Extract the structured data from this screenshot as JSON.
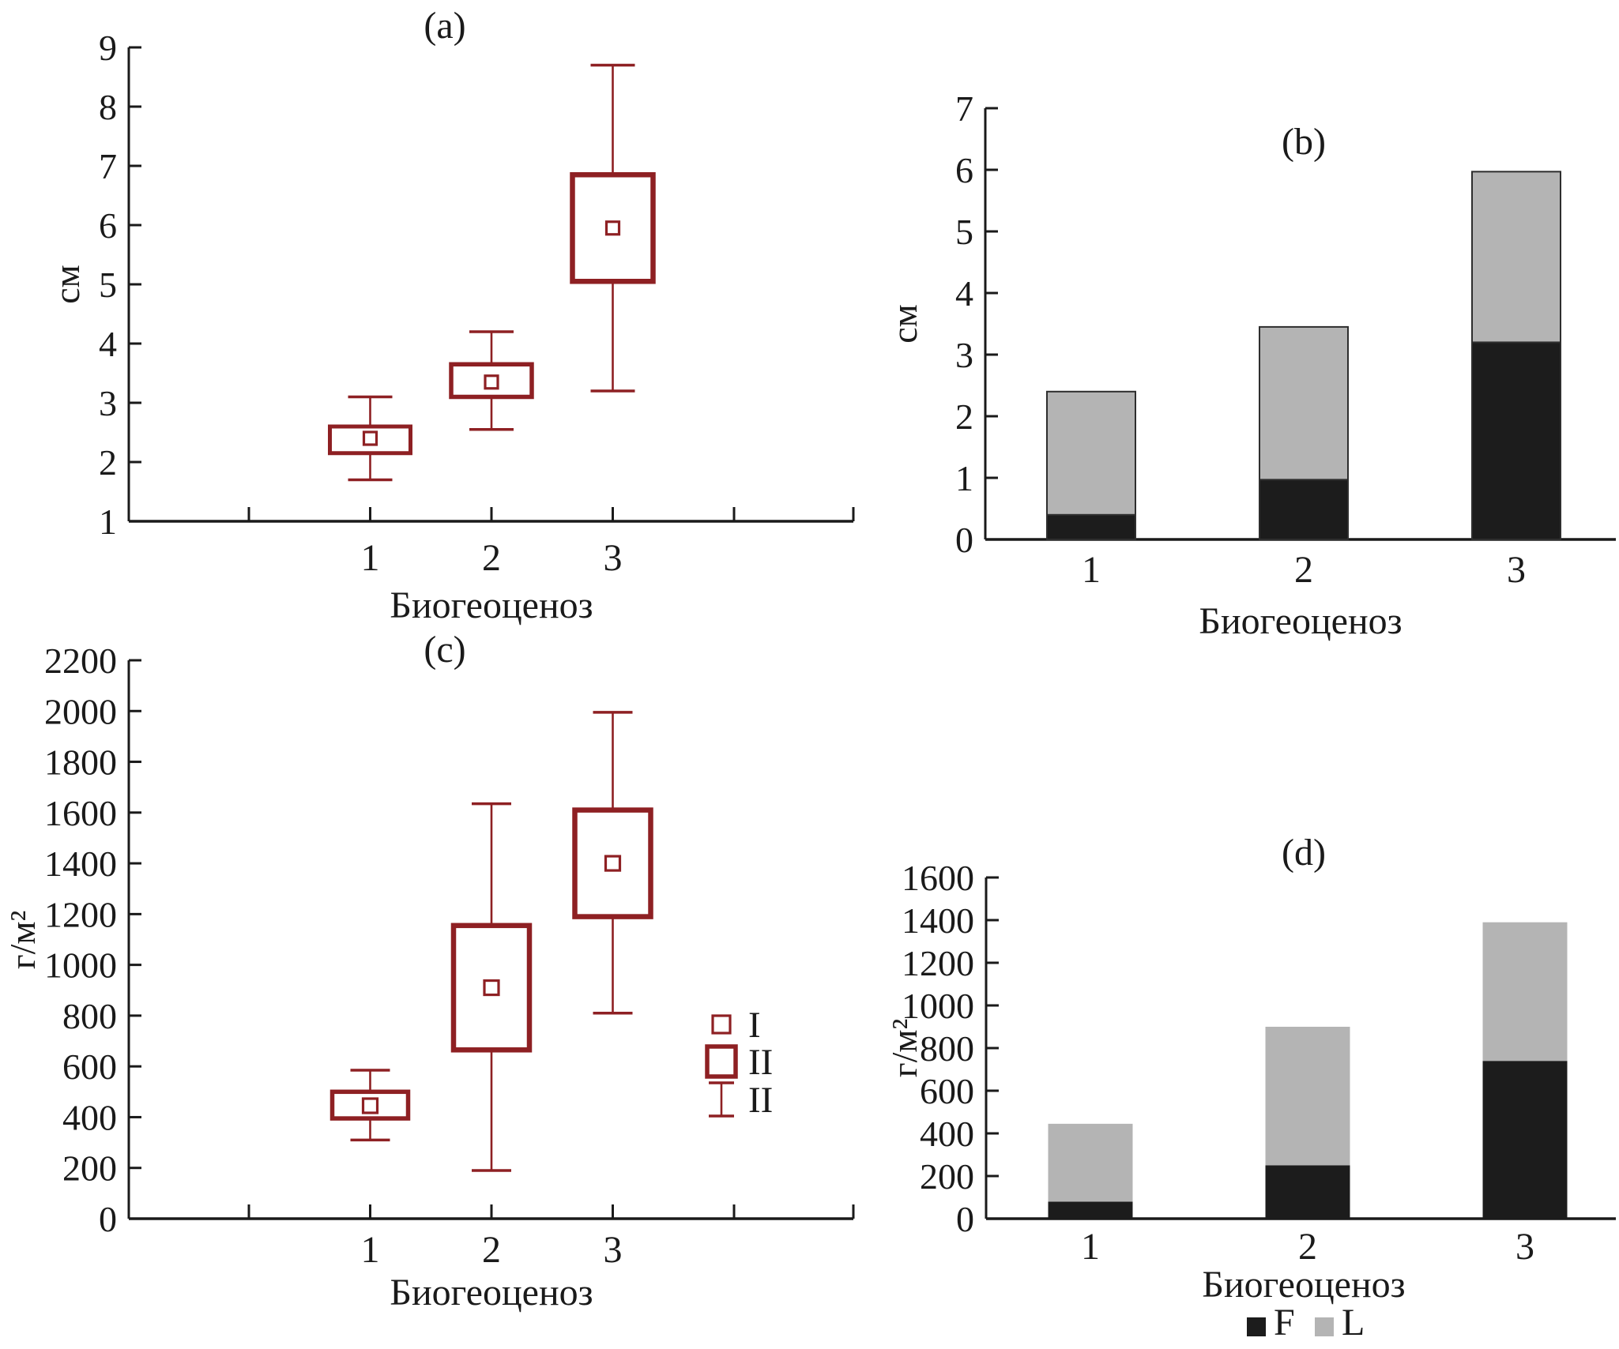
{
  "figure": {
    "background": "#ffffff",
    "xlabel_text": "Биогеоценоз"
  },
  "colors": {
    "box_red": "#8e2023",
    "bar_black": "#1c1c1c",
    "bar_gray": "#b4b4b4",
    "bar_outline": "#2e2e2e",
    "axis_black": "#1a1a1a",
    "text_black": "#1a1a1a"
  },
  "chart_data": [
    {
      "id": "a",
      "type": "box",
      "title": "(a)",
      "ylabel": "см",
      "xlabel": "Биогеоценоз",
      "categories": [
        "1",
        "2",
        "3"
      ],
      "ylim": [
        1,
        9
      ],
      "ytick_step": 1,
      "grid": false,
      "boxes": [
        {
          "whisker_low": 1.7,
          "q1": 2.15,
          "mean": 2.4,
          "q3": 2.6,
          "whisker_high": 3.1
        },
        {
          "whisker_low": 2.55,
          "q1": 3.1,
          "mean": 3.35,
          "q3": 3.65,
          "whisker_high": 4.2
        },
        {
          "whisker_low": 3.2,
          "q1": 5.05,
          "mean": 5.95,
          "q3": 6.85,
          "whisker_high": 8.7
        }
      ]
    },
    {
      "id": "b",
      "type": "stacked_bar",
      "title": "(b)",
      "ylabel": "см",
      "xlabel": "Биогеоценоз",
      "categories": [
        "1",
        "2",
        "3"
      ],
      "ylim": [
        0,
        7
      ],
      "ytick_step": 1,
      "grid": false,
      "series": [
        {
          "name": "F",
          "color_key": "bar_black",
          "values": [
            0.4,
            0.97,
            3.2
          ]
        },
        {
          "name": "L",
          "color_key": "bar_gray",
          "values": [
            2.0,
            2.48,
            2.77
          ]
        }
      ],
      "totals": [
        2.4,
        3.45,
        5.97
      ],
      "legend": null
    },
    {
      "id": "c",
      "type": "box",
      "title": "(c)",
      "ylabel": "г/м²",
      "xlabel": "Биогеоценоз",
      "categories": [
        "1",
        "2",
        "3"
      ],
      "ylim": [
        0,
        2200
      ],
      "ytick_step": 200,
      "grid": false,
      "boxes": [
        {
          "whisker_low": 310,
          "q1": 395,
          "mean": 445,
          "q3": 500,
          "whisker_high": 585
        },
        {
          "whisker_low": 190,
          "q1": 665,
          "mean": 910,
          "q3": 1155,
          "whisker_high": 1635
        },
        {
          "whisker_low": 810,
          "q1": 1190,
          "mean": 1400,
          "q3": 1610,
          "whisker_high": 1995
        }
      ],
      "legend": {
        "position": "lower-right-inside",
        "items": [
          {
            "glyph": "mean-marker",
            "label": "I"
          },
          {
            "glyph": "box",
            "label": "II"
          },
          {
            "glyph": "whisker",
            "label": "II"
          }
        ]
      }
    },
    {
      "id": "d",
      "type": "stacked_bar",
      "title": "(d)",
      "ylabel": "г/м²",
      "xlabel": "Биогеоценоз",
      "categories": [
        "1",
        "2",
        "3"
      ],
      "ylim": [
        0,
        1600
      ],
      "ytick_step": 200,
      "grid": false,
      "series": [
        {
          "name": "F",
          "color_key": "bar_black",
          "values": [
            80,
            250,
            740
          ]
        },
        {
          "name": "L",
          "color_key": "bar_gray",
          "values": [
            365,
            650,
            650
          ]
        }
      ],
      "totals": [
        445,
        900,
        1390
      ],
      "legend": {
        "position": "below-xlabel",
        "items": [
          {
            "glyph": "square",
            "color_key": "bar_black",
            "label": "F"
          },
          {
            "glyph": "square",
            "color_key": "bar_gray",
            "label": "L"
          }
        ]
      }
    }
  ]
}
